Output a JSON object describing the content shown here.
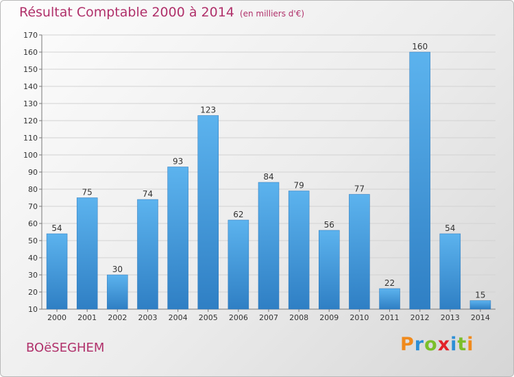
{
  "title": "Résultat Comptable 2000 à 2014",
  "unit_note": "(en milliers d'€)",
  "commune": "BOëSEGHEM",
  "brand": {
    "letters": [
      "P",
      "r",
      "o",
      "x",
      "i",
      "t",
      "i"
    ],
    "colors": [
      "#f08a1c",
      "#2c8fd6",
      "#7bbf2a",
      "#e2232a",
      "#2c8fd6",
      "#7bbf2a",
      "#f08a1c"
    ]
  },
  "colors": {
    "bar": "#4aa3e4",
    "title": "#b0306a"
  },
  "chart_data": {
    "type": "bar",
    "title": "Résultat Comptable 2000 à 2014",
    "subtitle": "(en milliers d'€)",
    "categories": [
      "2000",
      "2001",
      "2002",
      "2003",
      "2004",
      "2005",
      "2006",
      "2007",
      "2008",
      "2009",
      "2010",
      "2011",
      "2012",
      "2013",
      "2014"
    ],
    "values": [
      54,
      75,
      30,
      74,
      93,
      123,
      62,
      84,
      79,
      56,
      77,
      22,
      160,
      54,
      15
    ],
    "ylim": [
      10,
      170
    ],
    "yticks": [
      10,
      20,
      30,
      40,
      50,
      60,
      70,
      80,
      90,
      100,
      110,
      120,
      130,
      140,
      150,
      160,
      170
    ],
    "grid": true,
    "xlabel": "",
    "ylabel": ""
  }
}
